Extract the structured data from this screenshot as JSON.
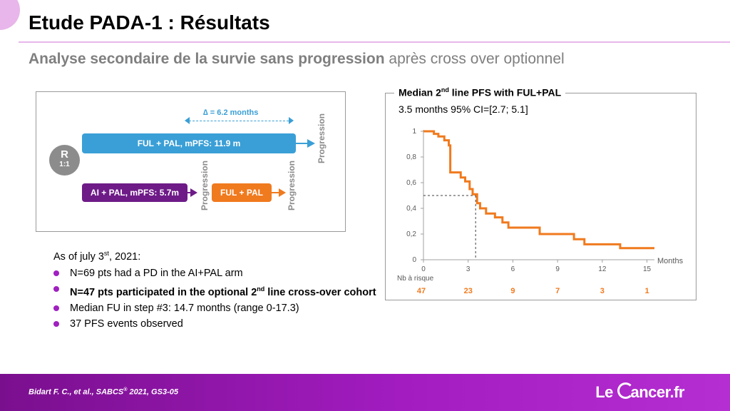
{
  "slide": {
    "title": "Etude PADA-1 : Résultats",
    "subtitle_bold": "Analyse secondaire de la survie sans progression",
    "subtitle_rest": " après cross over optionnel"
  },
  "design": {
    "randomization": "R",
    "ratio": "1:1",
    "delta_label": "∆ = 6.2 months",
    "arm_ful_label": "FUL + PAL, mPFS: 11.9 m",
    "arm_ai_label": "AI + PAL, mPFS: 5.7m",
    "arm_crossover_label": "FUL + PAL",
    "progression_label": "Progression",
    "colors": {
      "ful": "#3a9fd6",
      "ai": "#6e1b88",
      "crossover": "#f07a1e",
      "progression": "#8a8a8a"
    }
  },
  "facts": {
    "as_of_prefix": "As of july 3",
    "as_of_sup": "st",
    "as_of_suffix": ", 2021:",
    "bullet1": "N=69 pts had a PD in the AI+PAL arm",
    "bullet2_prefix": "N=47 pts participated in the optional 2",
    "bullet2_sup": "nd",
    "bullet2_suffix": " line cross-over cohort",
    "bullet3": "Median FU in step #3: 14.7 months (range 0-17.3)",
    "bullet4": "37 PFS events observed",
    "bullet_color": "#a020c0"
  },
  "km": {
    "title_prefix": "Median 2",
    "title_sup": "nd",
    "title_suffix": " line PFS with FUL+PAL",
    "subtitle": "3.5 months 95% CI=[2.7; 5.1]",
    "x_unit": "Months",
    "risk_label": "Nb à risque"
  },
  "chart_data": {
    "type": "line",
    "title": "Median 2nd line PFS with FUL+PAL",
    "xlabel": "Months",
    "ylabel": "",
    "xlim": [
      0,
      15.5
    ],
    "ylim": [
      0,
      1
    ],
    "x_ticks": [
      "0",
      "3",
      "6",
      "9",
      "12",
      "15"
    ],
    "y_ticks": [
      "0",
      "0,2",
      "0,4",
      "0,6",
      "0,8",
      "1"
    ],
    "grid": false,
    "series": [
      {
        "step": true,
        "color": "#f07a1e",
        "x": [
          0,
          0.7,
          1.0,
          1.4,
          1.7,
          1.8,
          2.5,
          2.8,
          3.1,
          3.3,
          3.6,
          3.8,
          4.2,
          4.8,
          5.3,
          5.7,
          7.8,
          10.1,
          10.8,
          13.2,
          15.5
        ],
        "y": [
          1.0,
          0.98,
          0.96,
          0.93,
          0.89,
          0.68,
          0.64,
          0.61,
          0.55,
          0.51,
          0.44,
          0.4,
          0.36,
          0.33,
          0.29,
          0.25,
          0.2,
          0.16,
          0.12,
          0.09,
          0.09
        ]
      }
    ],
    "median": {
      "x": 3.5,
      "y": 0.5
    },
    "at_risk": {
      "times": [
        0,
        3,
        6,
        9,
        12,
        15
      ],
      "labels": [
        "47",
        "23",
        "9",
        "7",
        "3",
        "1"
      ],
      "color": "#f07a1e"
    }
  },
  "footer": {
    "citation": "Bidart F. C., et al., SABCS",
    "citation_reg": "®",
    "citation_rest": " 2021, GS3-05",
    "logo_left": "Le ",
    "logo_right": "ancer.fr"
  }
}
